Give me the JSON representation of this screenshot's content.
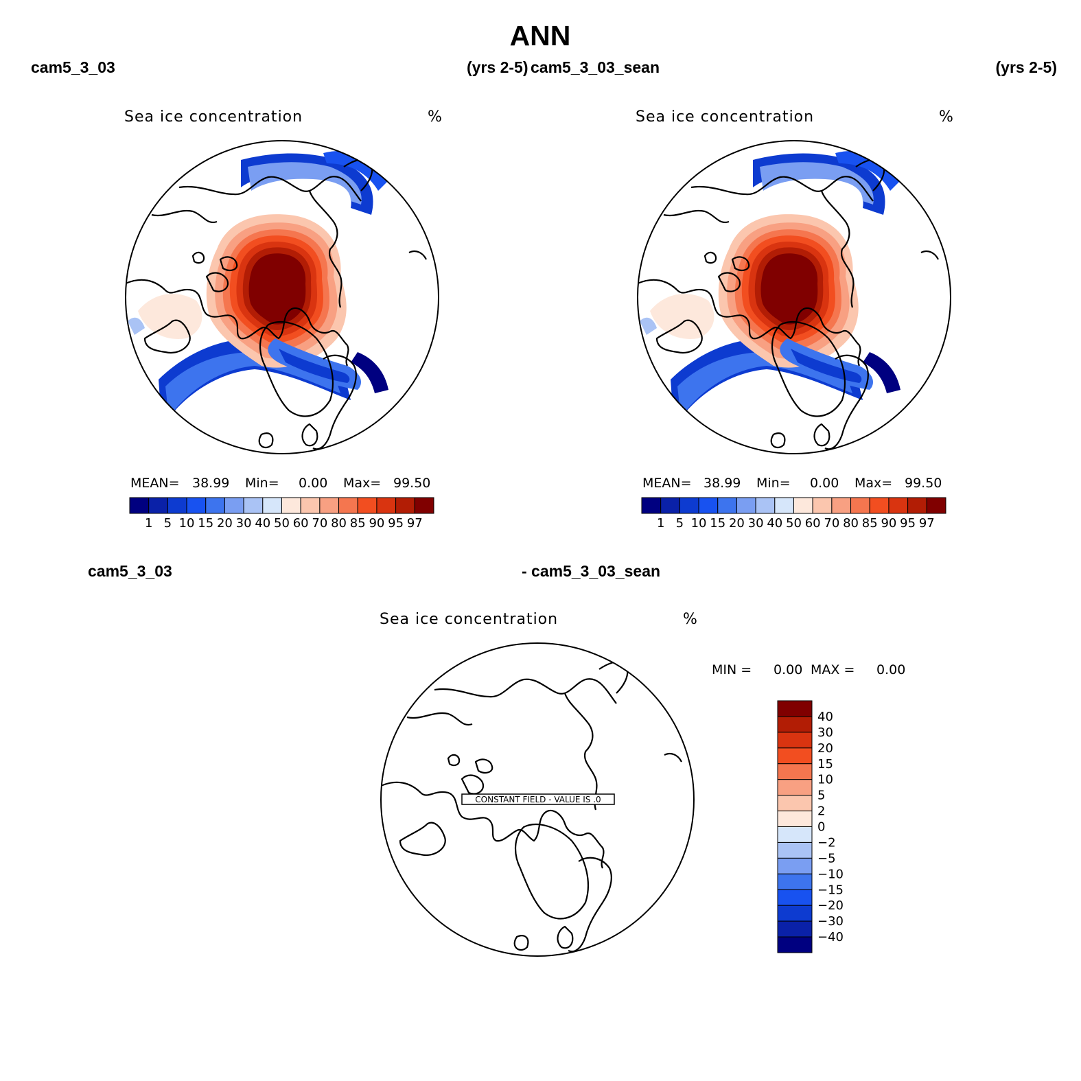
{
  "title": "ANN",
  "panels": [
    {
      "case_label": "cam5_3_03",
      "years": "(yrs 2-5)",
      "variable": "Sea ice concentration",
      "units": "%",
      "stats": {
        "mean_label": "MEAN=",
        "mean": "38.99",
        "min_label": "Min=",
        "min": "0.00",
        "max_label": "Max=",
        "max": "99.50"
      }
    },
    {
      "case_label": "cam5_3_03_sean",
      "years": "(yrs 2-5)",
      "variable": "Sea ice concentration",
      "units": "%",
      "stats": {
        "mean_label": "MEAN=",
        "mean": "38.99",
        "min_label": "Min=",
        "min": "0.00",
        "max_label": "Max=",
        "max": "99.50"
      }
    }
  ],
  "diff_panel": {
    "case_a": "cam5_3_03",
    "case_b": "- cam5_3_03_sean",
    "variable": "Sea ice concentration",
    "units": "%",
    "min_label": "MIN =",
    "min": "0.00",
    "max_label": "MAX =",
    "max": "0.00",
    "constant_field_text": "CONSTANT FIELD - VALUE IS .0"
  },
  "colors": {
    "main_scale": [
      "#000080",
      "#0a21a8",
      "#0d3bd0",
      "#1852f0",
      "#3d74ee",
      "#7a9ef2",
      "#aac3f5",
      "#d6e6fa",
      "#fde8dc",
      "#fbc6ae",
      "#f8a082",
      "#f5764f",
      "#f24e20",
      "#d93410",
      "#b21d05",
      "#800000"
    ],
    "diff_scale": [
      "#000080",
      "#0a21a8",
      "#0d3bd0",
      "#1852f0",
      "#3d74ee",
      "#7a9ef2",
      "#aac3f5",
      "#d6e6fa",
      "#fde8dc",
      "#fbc6ae",
      "#f8a082",
      "#f5764f",
      "#f24e20",
      "#d93410",
      "#b21d05",
      "#800000"
    ]
  },
  "chart_data": [
    {
      "type": "map",
      "projection": "north-polar-stereographic",
      "title": "Sea ice concentration",
      "units": "%",
      "colorbar_levels": [
        "1",
        "5",
        "10",
        "15",
        "20",
        "30",
        "40",
        "50",
        "60",
        "70",
        "80",
        "85",
        "90",
        "95",
        "97"
      ],
      "mean": 38.99,
      "min": 0.0,
      "max": 99.5
    },
    {
      "type": "map",
      "projection": "north-polar-stereographic",
      "title": "Sea ice concentration",
      "units": "%",
      "colorbar_levels": [
        "1",
        "5",
        "10",
        "15",
        "20",
        "30",
        "40",
        "50",
        "60",
        "70",
        "80",
        "85",
        "90",
        "95",
        "97"
      ],
      "mean": 38.99,
      "min": 0.0,
      "max": 99.5
    },
    {
      "type": "map",
      "projection": "north-polar-stereographic",
      "title": "Sea ice concentration",
      "units": "%",
      "colorbar_levels": [
        "40",
        "30",
        "20",
        "15",
        "10",
        "5",
        "2",
        "0",
        "−2",
        "−5",
        "−10",
        "−15",
        "−20",
        "−30",
        "−40"
      ],
      "min": 0.0,
      "max": 0.0
    }
  ]
}
